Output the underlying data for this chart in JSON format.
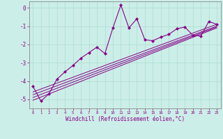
{
  "xlabel": "Windchill (Refroidissement éolien,°C)",
  "background_color": "#cceee8",
  "grid_color": "#aaddcc",
  "line_color": "#880088",
  "xlim": [
    -0.5,
    23.5
  ],
  "ylim": [
    -5.5,
    0.35
  ],
  "yticks": [
    0,
    -1,
    -2,
    -3,
    -4,
    -5
  ],
  "xticks": [
    0,
    1,
    2,
    3,
    4,
    5,
    6,
    7,
    8,
    9,
    10,
    11,
    12,
    13,
    14,
    15,
    16,
    17,
    18,
    19,
    20,
    21,
    22,
    23
  ],
  "main_x": [
    0,
    1,
    2,
    3,
    4,
    5,
    6,
    7,
    8,
    9,
    10,
    11,
    12,
    13,
    14,
    15,
    16,
    17,
    18,
    19,
    20,
    21,
    22,
    23
  ],
  "main_y": [
    -4.3,
    -5.1,
    -4.7,
    -3.9,
    -3.5,
    -3.15,
    -2.75,
    -2.45,
    -2.15,
    -2.5,
    -1.1,
    0.15,
    -1.1,
    -0.6,
    -1.75,
    -1.8,
    -1.6,
    -1.45,
    -1.15,
    -1.05,
    -1.5,
    -1.55,
    -0.75,
    -0.9
  ],
  "line1_x": [
    0,
    23
  ],
  "line1_y": [
    -4.6,
    -0.9
  ],
  "line2_x": [
    0,
    23
  ],
  "line2_y": [
    -4.75,
    -1.0
  ],
  "line3_x": [
    0,
    23
  ],
  "line3_y": [
    -4.9,
    -1.05
  ],
  "line4_x": [
    0,
    23
  ],
  "line4_y": [
    -5.05,
    -1.1
  ]
}
